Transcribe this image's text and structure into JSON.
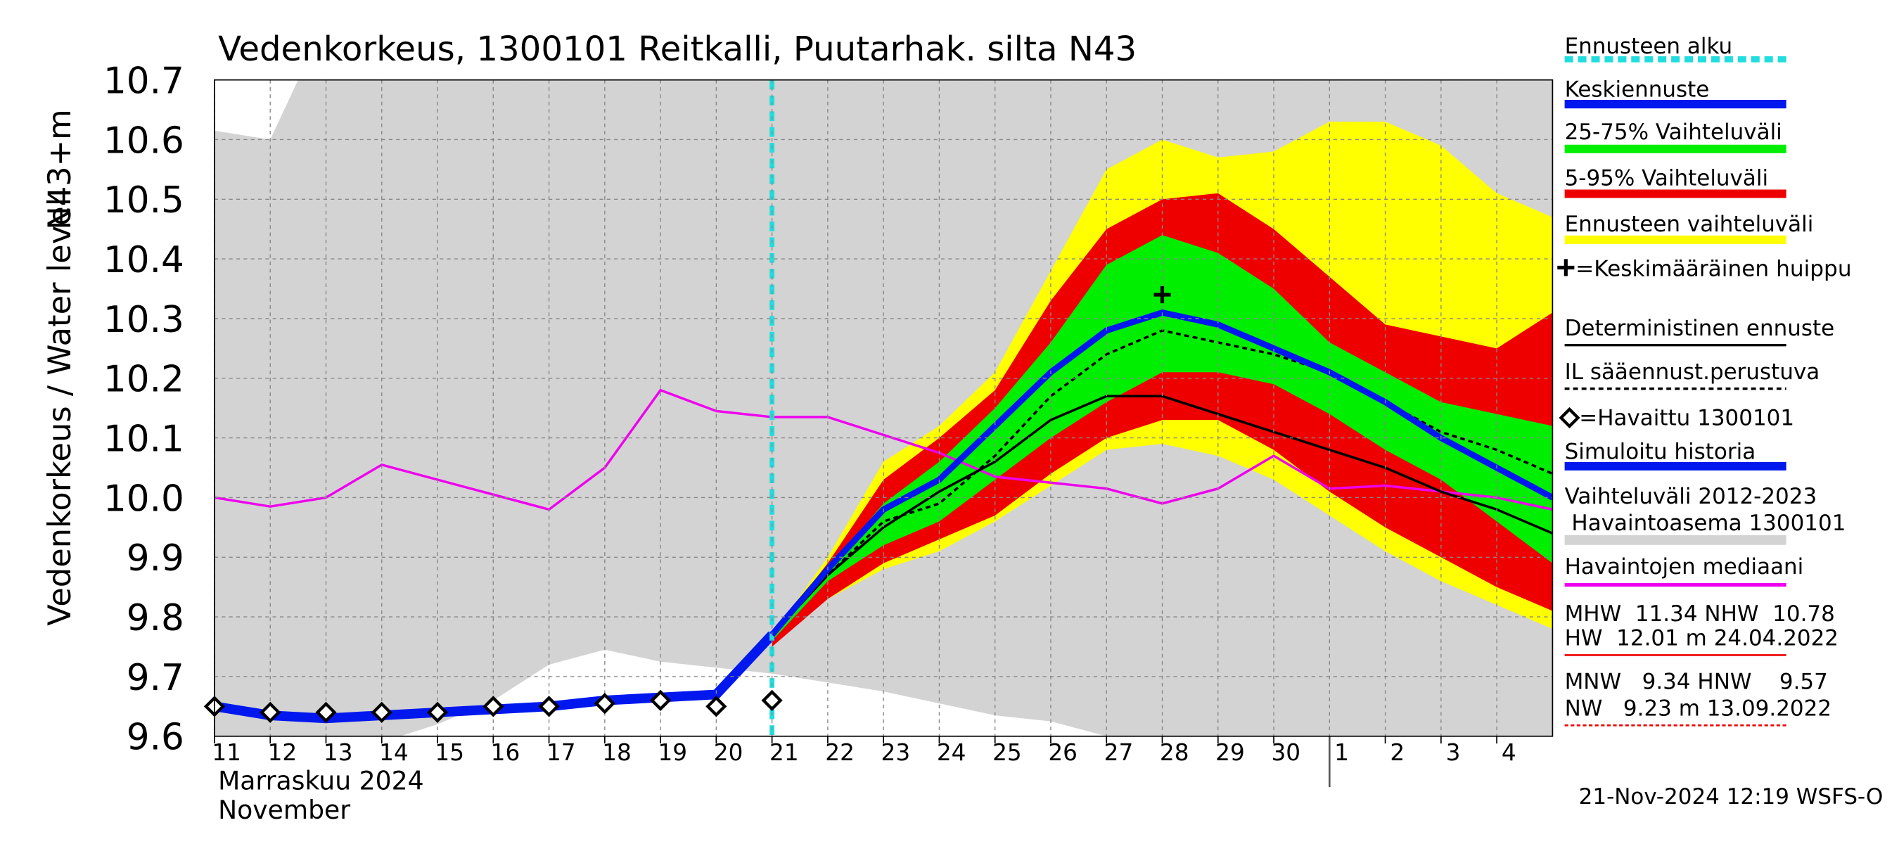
{
  "chart_data": {
    "type": "hydrograph",
    "title": "Vedenkorkeus, 1300101 Reitkalli, Puutarhak. silta N43",
    "ylabel": "Vedenkorkeus / Water level",
    "ylabel2": "N43+m",
    "xlabel": "Marraskuu 2024",
    "xlabel2": "November",
    "footer": "21-Nov-2024 12:19 WSFS-O",
    "xlim": [
      0,
      24
    ],
    "ylim": [
      9.6,
      10.7
    ],
    "yticks": [
      9.6,
      9.7,
      9.8,
      9.9,
      {
        "value": 10.0,
        "label": "10.0"
      },
      10.1,
      10.2,
      10.3,
      10.4,
      10.5,
      10.6,
      10.7
    ],
    "xticks": [
      {
        "value": 0,
        "label": "11"
      },
      {
        "value": 1,
        "label": "12"
      },
      {
        "value": 2,
        "label": "13"
      },
      {
        "value": 3,
        "label": "14"
      },
      {
        "value": 4,
        "label": "15"
      },
      {
        "value": 5,
        "label": "16"
      },
      {
        "value": 6,
        "label": "17"
      },
      {
        "value": 7,
        "label": "18"
      },
      {
        "value": 8,
        "label": "19"
      },
      {
        "value": 9,
        "label": "20"
      },
      {
        "value": 10,
        "label": "21"
      },
      {
        "value": 11,
        "label": "22"
      },
      {
        "value": 12,
        "label": "23"
      },
      {
        "value": 13,
        "label": "24"
      },
      {
        "value": 14,
        "label": "25"
      },
      {
        "value": 15,
        "label": "26"
      },
      {
        "value": 16,
        "label": "27"
      },
      {
        "value": 17,
        "label": "28"
      },
      {
        "value": 18,
        "label": "29"
      },
      {
        "value": 19,
        "label": "30"
      },
      {
        "value": 20,
        "label": "1"
      },
      {
        "value": 21,
        "label": "2"
      },
      {
        "value": 22,
        "label": "3"
      },
      {
        "value": 23,
        "label": "4"
      }
    ],
    "month_start": 20,
    "grid": true,
    "series": [
      {
        "name": "Ennusteen alku",
        "kind": "vline",
        "color": "#22dddd",
        "x": 10
      },
      {
        "name": "Keskiennuste",
        "kind": "line",
        "color": "#0018ee",
        "x": [
          10,
          11,
          12,
          13,
          14,
          15,
          16,
          17,
          18,
          19,
          20,
          21,
          22,
          23,
          24
        ],
        "values": [
          9.77,
          9.88,
          9.98,
          10.03,
          10.12,
          10.21,
          10.28,
          10.31,
          10.29,
          10.25,
          10.21,
          10.16,
          10.1,
          10.05,
          10.0
        ]
      },
      {
        "name": "25-75% Vaihteluväli",
        "kind": "band",
        "color": "#00ee00",
        "x": [
          10,
          11,
          12,
          13,
          14,
          15,
          16,
          17,
          18,
          19,
          20,
          21,
          22,
          23,
          24
        ],
        "values": [
          9.76,
          9.86,
          9.92,
          9.96,
          10.03,
          10.1,
          10.16,
          10.21,
          10.21,
          10.19,
          10.14,
          10.08,
          10.03,
          9.96,
          9.89
        ],
        "upper": [
          9.77,
          9.88,
          9.99,
          10.06,
          10.15,
          10.26,
          10.39,
          10.44,
          10.41,
          10.35,
          10.26,
          10.21,
          10.16,
          10.14,
          10.12
        ]
      },
      {
        "name": "5-95% Vaihteluväli",
        "kind": "band",
        "color": "#ee0000",
        "x": [
          10,
          11,
          12,
          13,
          14,
          15,
          16,
          17,
          18,
          19,
          20,
          21,
          22,
          23,
          24
        ],
        "values": [
          9.75,
          9.83,
          9.89,
          9.93,
          9.97,
          10.04,
          10.1,
          10.13,
          10.13,
          10.08,
          10.01,
          9.95,
          9.9,
          9.85,
          9.81
        ],
        "upper": [
          9.77,
          9.89,
          10.03,
          10.1,
          10.18,
          10.33,
          10.45,
          10.5,
          10.51,
          10.45,
          10.37,
          10.29,
          10.27,
          10.25,
          10.31
        ]
      },
      {
        "name": "Ennusteen vaihteluväli",
        "kind": "band",
        "color": "#ffff00",
        "x": [
          10,
          11,
          12,
          13,
          14,
          15,
          16,
          17,
          18,
          19,
          20,
          21,
          22,
          23,
          24
        ],
        "values": [
          9.76,
          9.83,
          9.88,
          9.91,
          9.96,
          10.02,
          10.08,
          10.09,
          10.07,
          10.03,
          9.97,
          9.91,
          9.86,
          9.82,
          9.78
        ],
        "upper": [
          9.77,
          9.9,
          10.06,
          10.12,
          10.21,
          10.38,
          10.55,
          10.6,
          10.57,
          10.58,
          10.63,
          10.63,
          10.59,
          10.51,
          10.47
        ]
      },
      {
        "name": "=Keskimääräinen huippu",
        "kind": "point",
        "color": "#000000",
        "x": 17,
        "values": 10.34
      },
      {
        "name": "Deterministinen ennuste",
        "kind": "line",
        "color": "#000000",
        "x": [
          10,
          11,
          12,
          13,
          14,
          15,
          16,
          17,
          18,
          19,
          20,
          21,
          22,
          23,
          24
        ],
        "values": [
          9.77,
          9.87,
          9.95,
          10.01,
          10.06,
          10.13,
          10.17,
          10.17,
          10.14,
          10.11,
          10.08,
          10.05,
          10.01,
          9.98,
          9.94
        ]
      },
      {
        "name": "IL sääennust.perustuva",
        "kind": "dashed",
        "color": "#000000",
        "x": [
          10,
          11,
          12,
          13,
          14,
          15,
          16,
          17,
          18,
          19,
          20,
          21,
          22,
          23,
          24
        ],
        "values": [
          9.77,
          9.87,
          9.96,
          9.99,
          10.07,
          10.17,
          10.24,
          10.28,
          10.26,
          10.24,
          10.21,
          10.16,
          10.11,
          10.08,
          10.04
        ]
      },
      {
        "name": "=Havaittu 1300101",
        "kind": "markers",
        "color": "#000000",
        "x": [
          0,
          1,
          2,
          3,
          4,
          5,
          6,
          7,
          8,
          9,
          10
        ],
        "values": [
          9.65,
          9.64,
          9.64,
          9.64,
          9.64,
          9.65,
          9.65,
          9.655,
          9.66,
          9.65,
          9.66
        ]
      },
      {
        "name": "Simuloitu historia",
        "kind": "thick",
        "color": "#0018ee",
        "x": [
          0,
          1,
          2,
          3,
          4,
          5,
          6,
          7,
          8,
          9,
          10
        ],
        "values": [
          9.65,
          9.635,
          9.63,
          9.635,
          9.64,
          9.645,
          9.65,
          9.66,
          9.665,
          9.67,
          9.77
        ]
      },
      {
        "name": "Vaihteluväli 2012-2023",
        "subname": " Havaintoasema 1300101",
        "kind": "band",
        "color": "#d3d3d3",
        "x": [
          0,
          1,
          2,
          3,
          4,
          5,
          6,
          7,
          8,
          9,
          10,
          11,
          12,
          13,
          14,
          15,
          16,
          17,
          18,
          19,
          20,
          21,
          22,
          23,
          24
        ],
        "values": [
          9.58,
          9.58,
          9.58,
          9.59,
          9.62,
          9.66,
          9.72,
          9.745,
          9.725,
          9.715,
          9.705,
          9.69,
          9.675,
          9.655,
          9.635,
          9.625,
          9.6,
          9.58,
          9.58,
          9.58,
          9.58,
          9.58,
          9.58,
          9.58,
          9.58
        ],
        "upper": [
          10.615,
          10.6,
          10.8,
          10.8,
          10.8,
          10.8,
          10.8,
          10.8,
          10.8,
          10.8,
          10.8,
          10.8,
          10.8,
          10.8,
          10.8,
          10.8,
          10.8,
          10.8,
          10.8,
          10.8,
          10.8,
          10.8,
          10.8,
          10.8,
          10.8
        ]
      },
      {
        "name": "Havaintojen mediaani",
        "kind": "line",
        "color": "#ee00ee",
        "x": [
          0,
          1,
          2,
          3,
          4,
          5,
          6,
          7,
          8,
          9,
          10,
          11,
          12,
          13,
          14,
          15,
          16,
          17,
          18,
          19,
          20,
          21,
          22,
          23,
          24
        ],
        "values": [
          10.0,
          9.985,
          10.0,
          10.055,
          10.03,
          10.005,
          9.98,
          10.05,
          10.18,
          10.145,
          10.135,
          10.135,
          10.105,
          10.075,
          10.035,
          10.025,
          10.015,
          9.99,
          10.015,
          10.07,
          10.015,
          10.02,
          10.01,
          10.0,
          9.98
        ]
      }
    ],
    "stats": [
      "MHW  11.34 NHW  10.78",
      "HW  12.01 m 24.04.2022",
      "MNW   9.34 HNW    9.57",
      "NW   9.23 m 13.09.2022"
    ]
  }
}
